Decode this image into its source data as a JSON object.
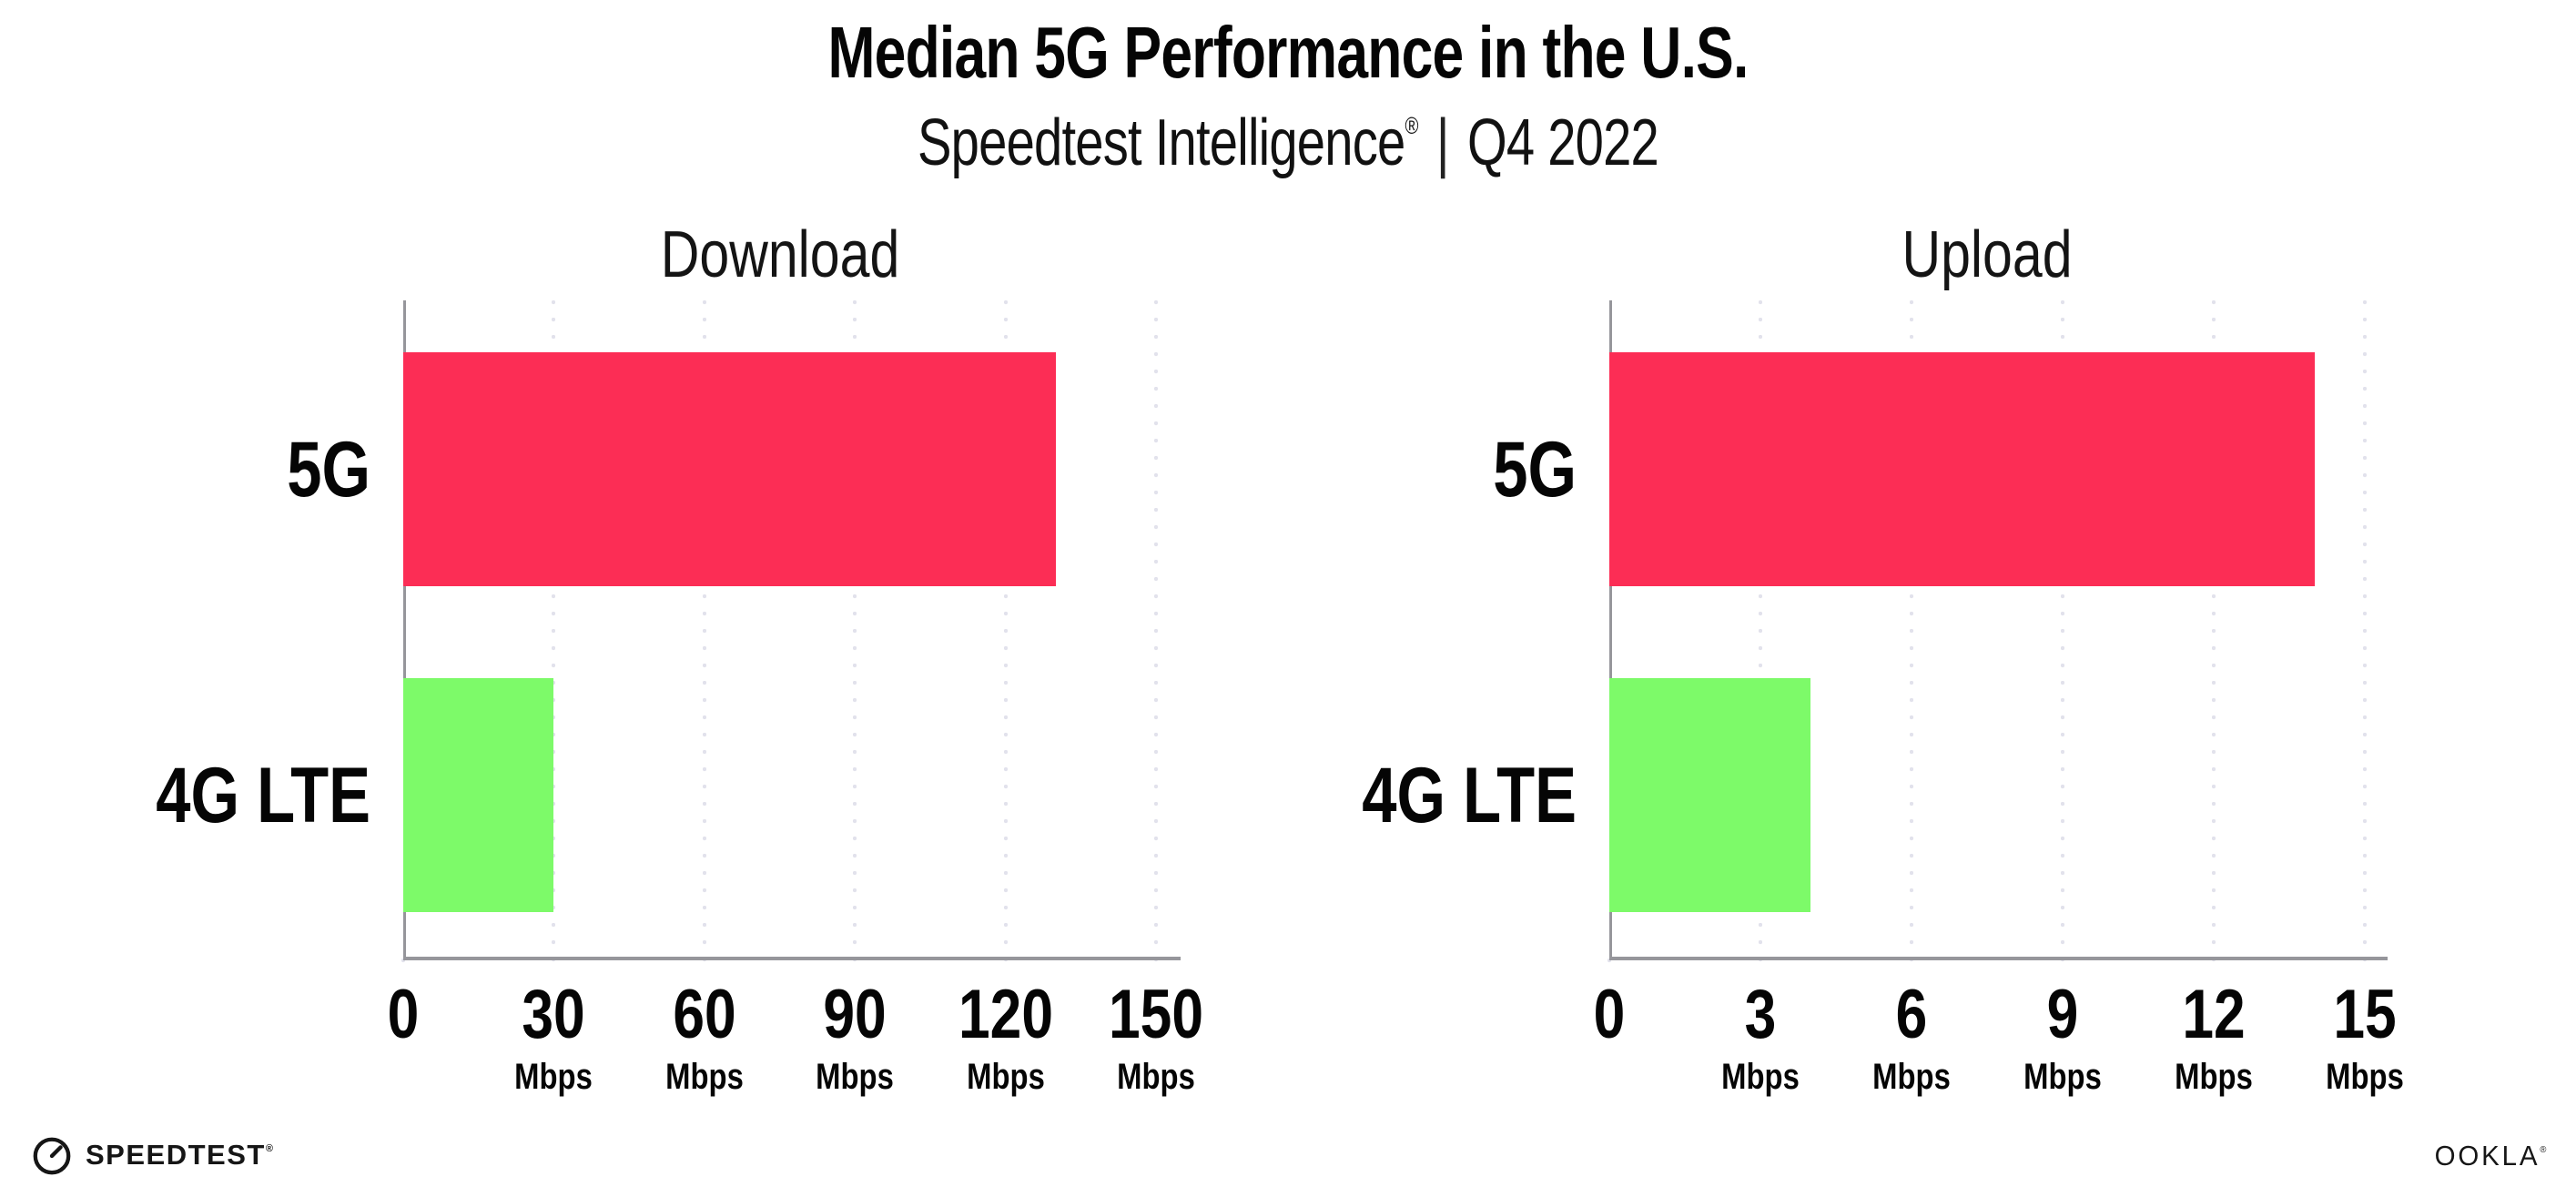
{
  "header": {
    "title": "Median 5G Performance in the U.S.",
    "subtitle_brand": "Speedtest Intelligence",
    "subtitle_reg": "®",
    "subtitle_sep": "|",
    "subtitle_period": "Q4 2022"
  },
  "chart_data": [
    {
      "type": "bar",
      "orientation": "horizontal",
      "title": "Download",
      "categories": [
        "5G",
        "4G LTE"
      ],
      "values": [
        130,
        30
      ],
      "unit": "Mbps",
      "xlim": [
        0,
        150
      ],
      "xticks": [
        0,
        30,
        60,
        90,
        120,
        150
      ],
      "tick_unit_label": "Mbps",
      "grid": "dotted-vertical",
      "legend": "none",
      "series_colors": [
        "#fc2d55",
        "#7dfa69"
      ]
    },
    {
      "type": "bar",
      "orientation": "horizontal",
      "title": "Upload",
      "categories": [
        "5G",
        "4G LTE"
      ],
      "values": [
        14,
        4
      ],
      "unit": "Mbps",
      "xlim": [
        0,
        15
      ],
      "xticks": [
        0,
        3,
        6,
        9,
        12,
        15
      ],
      "tick_unit_label": "Mbps",
      "grid": "dotted-vertical",
      "legend": "none",
      "series_colors": [
        "#fc2d55",
        "#7dfa69"
      ]
    }
  ],
  "colors": {
    "bar_5g": "#fc2d55",
    "bar_4g_lte": "#7dfa69",
    "axis": "#96969b",
    "gridline": "#e2e2ec",
    "text": "#050505",
    "background": "#ffffff"
  },
  "footer": {
    "speedtest_text": "SPEEDTEST",
    "speedtest_reg": "®",
    "speedtest_icon": "speedtest-gauge-icon",
    "ookla_text": "OOKLA",
    "ookla_reg": "®"
  }
}
